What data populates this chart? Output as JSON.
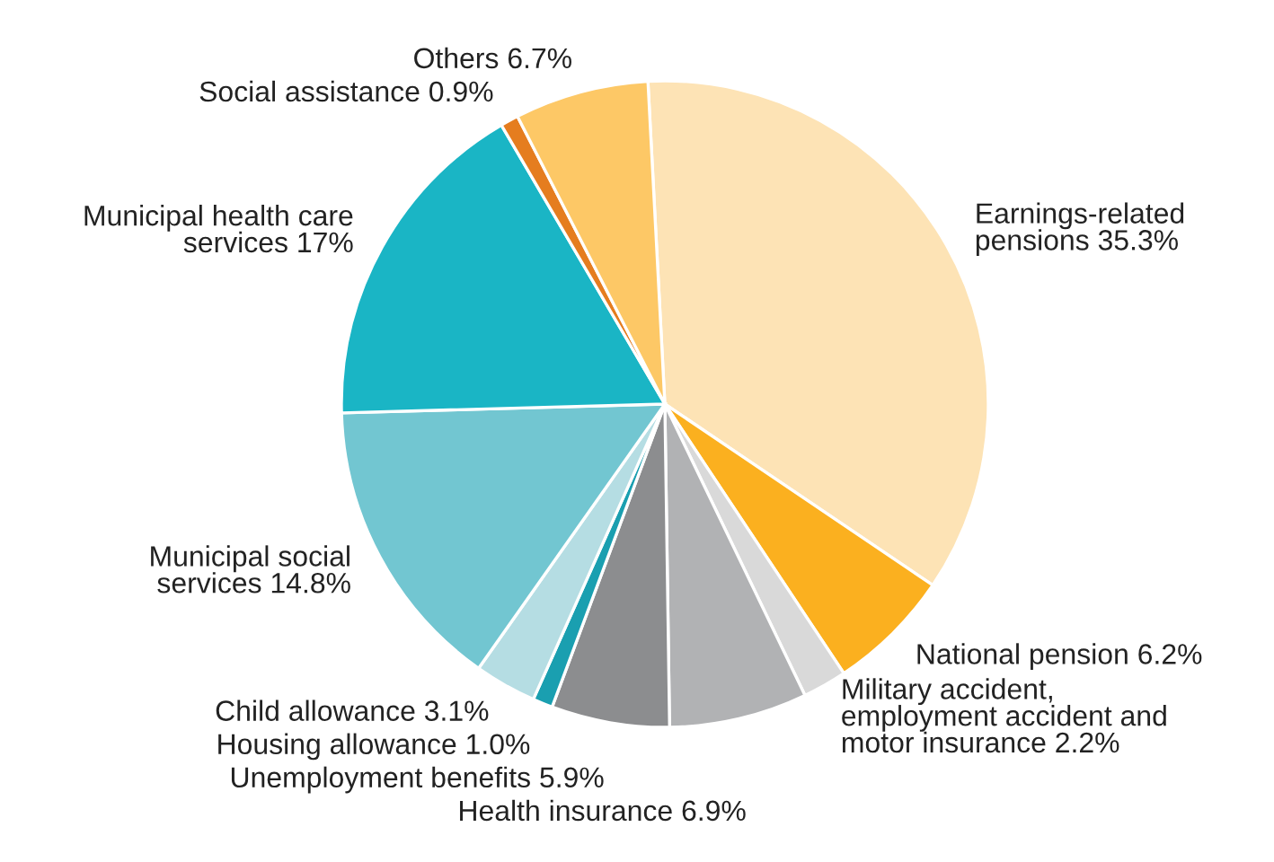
{
  "chart_data": {
    "type": "pie",
    "categories": [
      "Earnings-related\npensions 35.3%",
      "National pension 6.2%",
      "Military accident,\nemployment accident and\nmotor insurance 2.2%",
      "Health insurance 6.9%",
      "Unemployment benefits 5.9%",
      "Housing allowance 1.0%",
      "Child allowance 3.1%",
      "Municipal social\nservices 14.8%",
      "Municipal health care\nservices 17%",
      "Social assistance 0.9%",
      "Others 6.7%"
    ],
    "values": [
      35.3,
      6.2,
      2.2,
      6.9,
      5.9,
      1.0,
      3.1,
      14.8,
      17,
      0.9,
      6.7
    ],
    "colors": [
      "#fde3b5",
      "#fbb01f",
      "#d9d9d9",
      "#b1b2b4",
      "#8c8d8f",
      "#1a9fb0",
      "#b5dde3",
      "#72c6d1",
      "#1ab5c5",
      "#e57d1f",
      "#fdc866"
    ]
  }
}
